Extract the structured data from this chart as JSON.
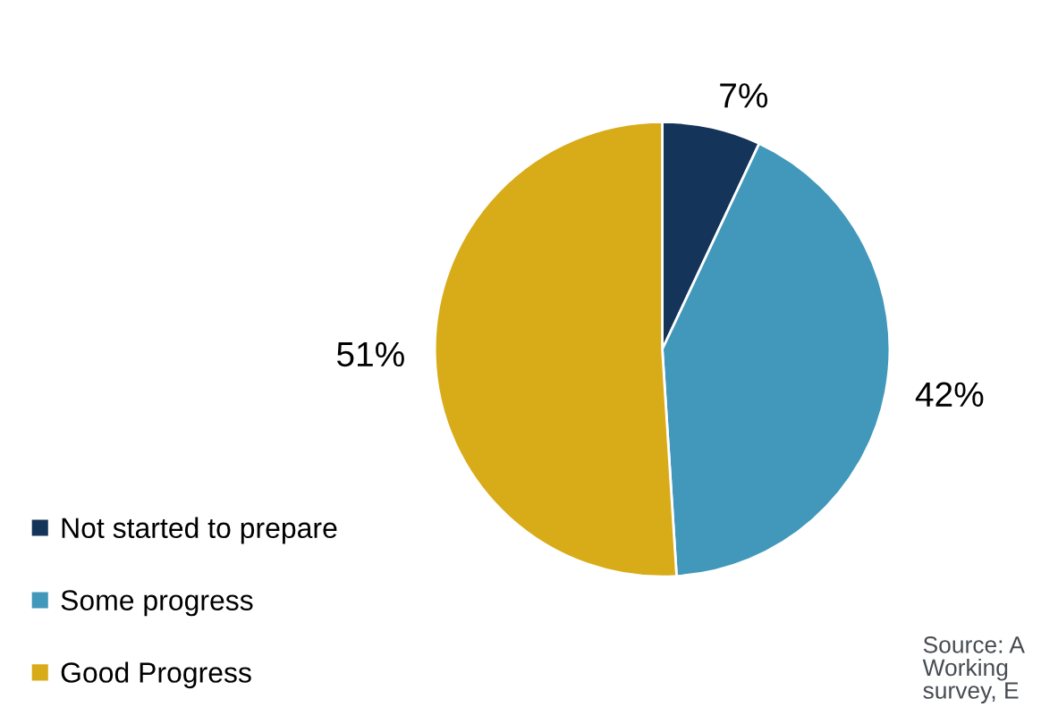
{
  "chart_data": {
    "type": "pie",
    "categories": [
      "Not started to prepare",
      "Some progress",
      "Good Progress"
    ],
    "values": [
      7,
      42,
      51
    ],
    "colors": [
      "#14345a",
      "#4198bb",
      "#d8ab19"
    ],
    "value_labels": [
      "7%",
      "42%",
      "51%"
    ],
    "legend": "bottom left",
    "annotations": [
      "Source: A\nWorking\nsurvey, E"
    ]
  }
}
